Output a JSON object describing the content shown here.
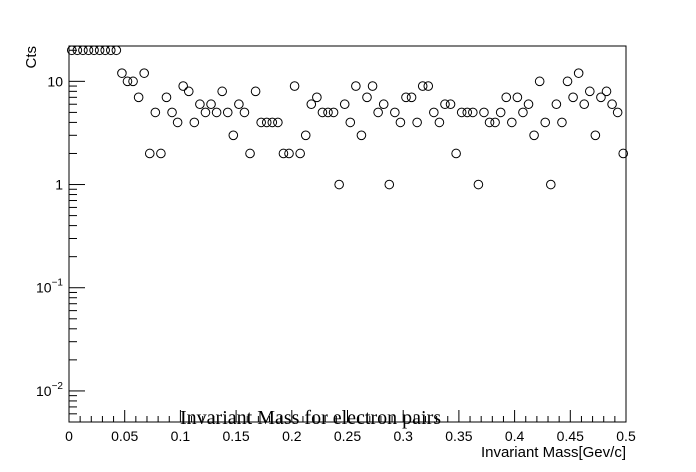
{
  "chart_data": {
    "type": "scatter",
    "title": "Invariant Mass for electron pairs",
    "xlabel": "Invariant Mass[Gev/c]",
    "ylabel": "Cts",
    "xlim": [
      0,
      0.5
    ],
    "ylim": [
      0.005,
      22
    ],
    "yscale": "log",
    "marker": "open-circle",
    "grid": false,
    "x_tick_labels": [
      "0",
      "0.05",
      "0.1",
      "0.15",
      "0.2",
      "0.25",
      "0.3",
      "0.35",
      "0.4",
      "0.45",
      "0.5"
    ],
    "y_tick_labels": [
      {
        "value": 10,
        "base": "10",
        "exp": ""
      },
      {
        "value": 1,
        "base": "1",
        "exp": ""
      },
      {
        "value": 0.1,
        "base": "10",
        "exp": "−1"
      },
      {
        "value": 0.01,
        "base": "10",
        "exp": "−2"
      }
    ],
    "x": [
      0.0025,
      0.0075,
      0.0125,
      0.0175,
      0.0225,
      0.0275,
      0.0325,
      0.0375,
      0.0425,
      0.0475,
      0.0525,
      0.0575,
      0.0625,
      0.0675,
      0.0725,
      0.0775,
      0.0825,
      0.0875,
      0.0925,
      0.0975,
      0.1025,
      0.1075,
      0.1125,
      0.1175,
      0.1225,
      0.1275,
      0.1325,
      0.1375,
      0.1425,
      0.1475,
      0.1525,
      0.1575,
      0.1625,
      0.1675,
      0.1725,
      0.1775,
      0.1825,
      0.1875,
      0.1925,
      0.1975,
      0.2025,
      0.2075,
      0.2125,
      0.2175,
      0.2225,
      0.2275,
      0.2325,
      0.2375,
      0.2425,
      0.2475,
      0.2525,
      0.2575,
      0.2625,
      0.2675,
      0.2725,
      0.2775,
      0.2825,
      0.2875,
      0.2925,
      0.2975,
      0.3025,
      0.3075,
      0.3125,
      0.3175,
      0.3225,
      0.3275,
      0.3325,
      0.3375,
      0.3425,
      0.3475,
      0.3525,
      0.3575,
      0.3625,
      0.3675,
      0.3725,
      0.3775,
      0.3825,
      0.3875,
      0.3925,
      0.3975,
      0.4025,
      0.4075,
      0.4125,
      0.4175,
      0.4225,
      0.4275,
      0.4325,
      0.4375,
      0.4425,
      0.4475,
      0.4525,
      0.4575,
      0.4625,
      0.4675,
      0.4725,
      0.4775,
      0.4825,
      0.4875,
      0.4925,
      0.4975
    ],
    "y": [
      20,
      20,
      20,
      20,
      20,
      20,
      20,
      20,
      20,
      12,
      10,
      10,
      7,
      12,
      2,
      5,
      2,
      7,
      5,
      4,
      9,
      8,
      4,
      6,
      5,
      6,
      5,
      8,
      5,
      3,
      6,
      5,
      2,
      8,
      4,
      4,
      4,
      4,
      2,
      2,
      9,
      2,
      3,
      6,
      7,
      5,
      5,
      5,
      1,
      6,
      4,
      9,
      3,
      7,
      9,
      5,
      6,
      1,
      5,
      4,
      7,
      7,
      4,
      9,
      9,
      5,
      4,
      6,
      6,
      2,
      5,
      5,
      5,
      1,
      5,
      4,
      4,
      5,
      7,
      4,
      7,
      5,
      6,
      3,
      10,
      4,
      1,
      6,
      4,
      10,
      7,
      12,
      6,
      8,
      3,
      7,
      8,
      6,
      5,
      2
    ]
  }
}
